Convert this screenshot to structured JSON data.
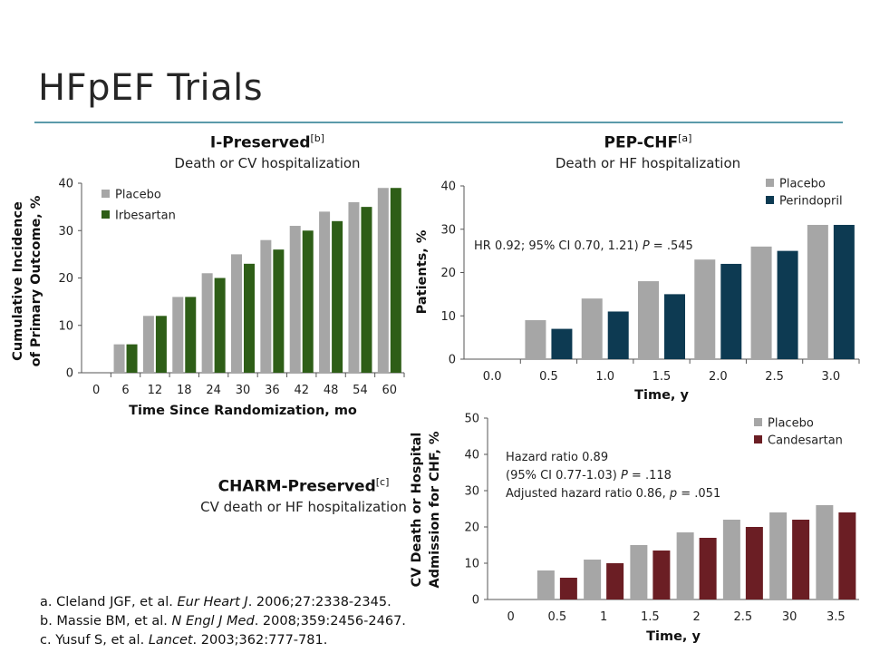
{
  "slide": {
    "title": "HFpEF Trials",
    "references": [
      {
        "prefix": "a. Cleland JGF, et al. ",
        "journal": "Eur Heart J",
        "suffix": ". 2006;27:2338-2345."
      },
      {
        "prefix": "b. Massie BM, et al. ",
        "journal": "N Engl J Med",
        "suffix": ". 2008;359:2456-2467."
      },
      {
        "prefix": "c. Yusuf S, et al. ",
        "journal": "Lancet",
        "suffix": ". 2003;362:777-781."
      }
    ]
  },
  "chart_data": [
    {
      "id": "i-preserved",
      "type": "bar",
      "title": "I-Preserved",
      "title_ref": "[b]",
      "subtitle": "Death or CV hospitalization",
      "xlabel": "Time Since Randomization, mo",
      "ylabel": [
        "Cumulative Incidence",
        "of Primary Outcome, %"
      ],
      "categories": [
        "0",
        "6",
        "12",
        "18",
        "24",
        "30",
        "36",
        "42",
        "48",
        "54",
        "60"
      ],
      "ylim": [
        0,
        40
      ],
      "yticks": [
        0,
        10,
        20,
        30,
        40
      ],
      "legend_position": "top-left",
      "annotations": [],
      "series": [
        {
          "name": "Placebo",
          "color": "#a6a6a6",
          "values": [
            null,
            6,
            12,
            16,
            21,
            25,
            28,
            31,
            34,
            36,
            39
          ]
        },
        {
          "name": "Irbesartan",
          "color": "#2e5e17",
          "values": [
            null,
            6,
            12,
            16,
            20,
            23,
            26,
            30,
            32,
            35,
            39
          ]
        }
      ]
    },
    {
      "id": "pep-chf",
      "type": "bar",
      "title": "PEP-CHF",
      "title_ref": "[a]",
      "subtitle": "Death or HF hospitalization",
      "xlabel": "Time, y",
      "ylabel": [
        "Patients, %"
      ],
      "categories": [
        "0.0",
        "0.5",
        "1.0",
        "1.5",
        "2.0",
        "2.5",
        "3.0"
      ],
      "ylim": [
        0,
        40
      ],
      "yticks": [
        0,
        10,
        20,
        30,
        40
      ],
      "legend_position": "top-right",
      "annotations": [
        [
          {
            "t": "HR 0.92; 95% CI 0.70, 1.21) "
          },
          {
            "t": "P",
            "i": true
          },
          {
            "t": " = .545"
          }
        ]
      ],
      "series": [
        {
          "name": "Placebo",
          "color": "#a6a6a6",
          "values": [
            null,
            9,
            14,
            18,
            23,
            26,
            31
          ]
        },
        {
          "name": "Perindopril",
          "color": "#0d3a52",
          "values": [
            null,
            7,
            11,
            15,
            22,
            25,
            31
          ]
        }
      ]
    },
    {
      "id": "charm-preserved",
      "type": "bar",
      "title": "CHARM-Preserved",
      "title_ref": "[c]",
      "subtitle": "CV death or HF hospitalization",
      "xlabel": "Time, y",
      "ylabel": [
        "CV Death or Hospital",
        "Admission for CHF, %"
      ],
      "categories": [
        "0",
        "0.5",
        "1",
        "1.5",
        "2",
        "2.5",
        "30",
        "3.5"
      ],
      "ylim": [
        0,
        50
      ],
      "yticks": [
        0,
        10,
        20,
        30,
        40,
        50
      ],
      "legend_position": "top-right",
      "annotations": [
        [
          {
            "t": "Hazard ratio 0.89"
          }
        ],
        [
          {
            "t": "(95% CI 0.77-1.03) "
          },
          {
            "t": "P",
            "i": true
          },
          {
            "t": " = .118"
          }
        ],
        [
          {
            "t": "Adjusted hazard ratio 0.86, "
          },
          {
            "t": "p",
            "i": true
          },
          {
            "t": " = .051"
          }
        ]
      ],
      "series": [
        {
          "name": "Placebo",
          "color": "#a6a6a6",
          "values": [
            null,
            8,
            11,
            15,
            18.5,
            22,
            24,
            26
          ]
        },
        {
          "name": "Candesartan",
          "color": "#6b1e24",
          "values": [
            null,
            6,
            10,
            13.5,
            17,
            20,
            22,
            24
          ]
        }
      ]
    }
  ]
}
